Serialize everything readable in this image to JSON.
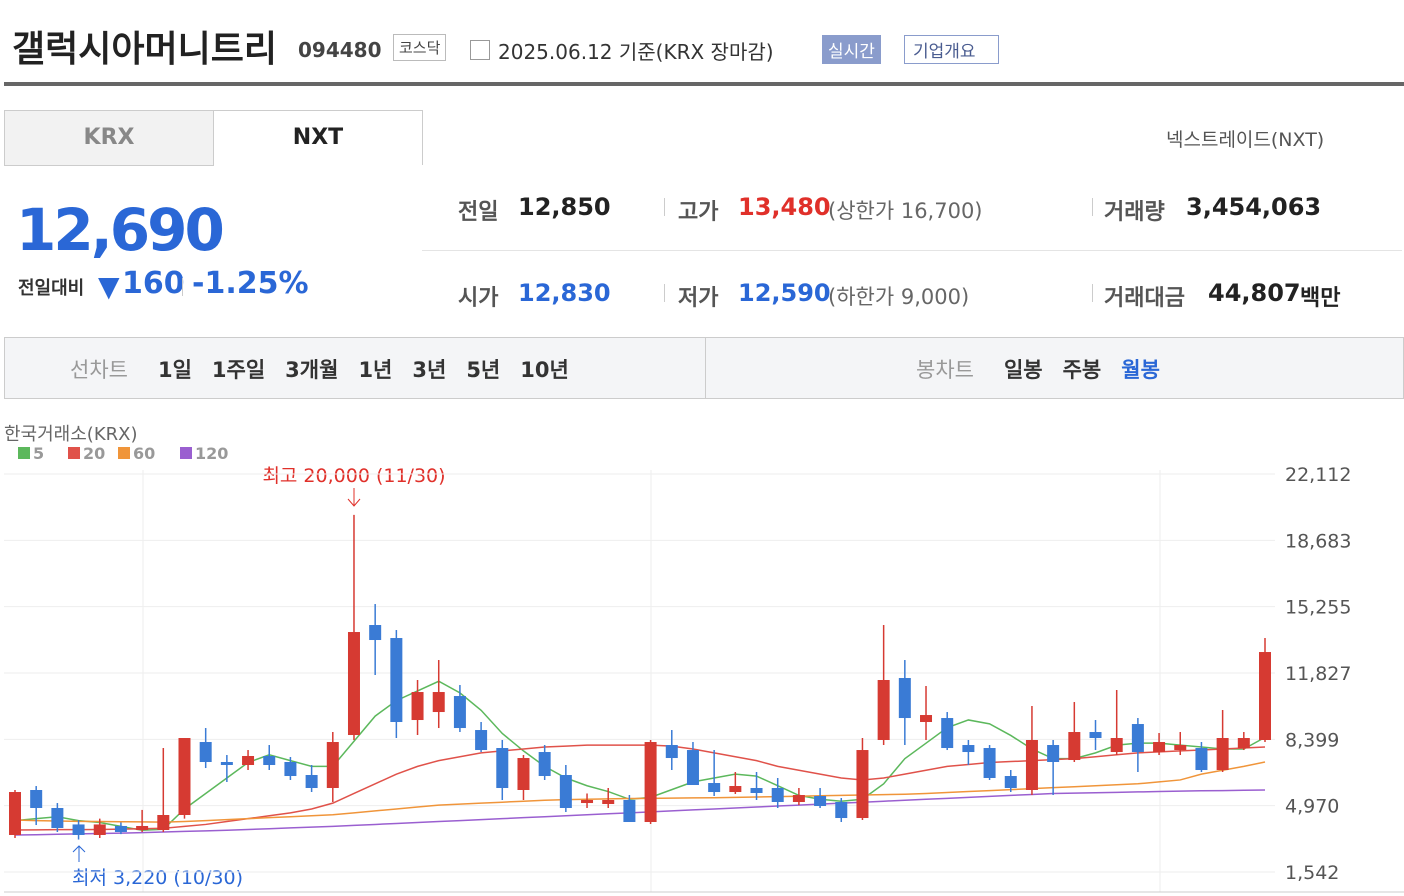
{
  "header": {
    "title": "갤럭시아머니트리",
    "code": "094480",
    "market": "코스닥",
    "date": "2025.06.12 기준(KRX 장마감)",
    "realtime": "실시간",
    "company": "기업개요"
  },
  "tabs": [
    "KRX",
    "NXT"
  ],
  "nxt_link": "넥스트레이드(NXT)",
  "price": {
    "current": "12,690",
    "change_label": "전일대비",
    "change": "160",
    "rate": "-1.25%"
  },
  "info": {
    "prev_label": "전일",
    "prev": "12,850",
    "high_label": "고가",
    "high": "13,480",
    "upper": "(상한가 16,700)",
    "volume_label": "거래량",
    "volume": "3,454,063",
    "open_label": "시가",
    "open": "12,830",
    "low_label": "저가",
    "low": "12,590",
    "lower": "(하한가 9,000)",
    "amount_label": "거래대금",
    "amount": "44,807",
    "amount_unit": "백만"
  },
  "periods": {
    "line_label": "선차트",
    "line": [
      "1일",
      "1주일",
      "3개월",
      "1년",
      "3년",
      "5년",
      "10년"
    ],
    "candle_label": "봉차트",
    "candle": [
      "일봉",
      "주봉",
      "월봉"
    ]
  },
  "chart": {
    "type": "candlestick",
    "source": "한국거래소(KRX)",
    "annotation_high": "최고 20,000 (11/30)",
    "annotation_low": "최저 3,220 (10/30)",
    "up_color": "#d63a32",
    "down_color": "#3a7bd5",
    "ylim": [
      1542,
      22112
    ],
    "yticks": [
      {
        "value": 1542,
        "label": "1,542"
      },
      {
        "value": 4970,
        "label": "4,970"
      },
      {
        "value": 8399,
        "label": "8,399"
      },
      {
        "value": 11827,
        "label": "11,827"
      },
      {
        "value": 15255,
        "label": "15,255"
      },
      {
        "value": 18683,
        "label": "18,683"
      },
      {
        "value": 22112,
        "label": "22,112"
      }
    ],
    "open": [
      3455,
      5780,
      4850,
      4000,
      3455,
      3920,
      3710,
      3713,
      4488,
      8260,
      7227,
      7072,
      7537,
      7227,
      6555,
      5883,
      8622,
      14307,
      13635,
      9397,
      9810,
      10637,
      8880,
      7950,
      5780,
      7743,
      6555,
      5107,
      5056,
      5263,
      4126,
      8105,
      7846,
      6141,
      5676,
      5883,
      5883,
      5160,
      5470,
      5160,
      4332,
      8364,
      11568,
      9294,
      9500,
      8105,
      7950,
      6503,
      5780,
      8105,
      7330,
      8777,
      7743,
      9190,
      7743,
      7846,
      7950,
      6813,
      7950,
      8364
    ],
    "high": [
      5780,
      5985,
      5107,
      4229,
      4300,
      4100,
      4750,
      7950,
      8467,
      8983,
      7588,
      7846,
      8105,
      7485,
      7072,
      8777,
      20000,
      15392,
      14048,
      11465,
      12498,
      11206,
      9294,
      8364,
      7588,
      8105,
      7072,
      5600,
      5883,
      5521,
      8364,
      8880,
      8260,
      7846,
      6710,
      6710,
      6400,
      5883,
      5883,
      5366,
      8467,
      14307,
      12498,
      11155,
      9810,
      8364,
      8105,
      6813,
      10121,
      8364,
      10327,
      9397,
      10948,
      9500,
      8725,
      8777,
      8260,
      9914,
      8777,
      13635
    ],
    "low": [
      3300,
      3970,
      3610,
      3220,
      3300,
      3500,
      3610,
      3610,
      4300,
      6916,
      6193,
      6813,
      6813,
      6297,
      5676,
      5160,
      8364,
      11723,
      8467,
      8622,
      8983,
      8777,
      7743,
      5263,
      5263,
      6297,
      4643,
      4850,
      4850,
      4126,
      4023,
      6813,
      6038,
      5470,
      5573,
      5263,
      4850,
      5000,
      4850,
      4126,
      4229,
      8105,
      8105,
      8364,
      7846,
      7072,
      6297,
      5676,
      5521,
      5521,
      7227,
      7846,
      7588,
      6710,
      7588,
      7588,
      6710,
      6710,
      7846,
      8260
    ],
    "close": [
      5676,
      4850,
      3816,
      3455,
      4000,
      3610,
      3920,
      4488,
      8467,
      7227,
      7072,
      7537,
      7072,
      6503,
      5883,
      8260,
      13945,
      13532,
      9294,
      10844,
      10844,
      8983,
      7846,
      5883,
      7433,
      6503,
      4850,
      5263,
      5263,
      4126,
      8260,
      7433,
      6038,
      5676,
      5986,
      5625,
      5160,
      5521,
      4953,
      4332,
      7846,
      11465,
      9500,
      9655,
      7950,
      7743,
      6400,
      5883,
      8364,
      7227,
      8777,
      8467,
      8467,
      7743,
      8260,
      8105,
      6813,
      8467,
      8467,
      12911
    ],
    "series": [
      {
        "name": "5",
        "color": "#5cb85c",
        "values": [
          4200,
          4300,
          4400,
          4200,
          4100,
          3900,
          3700,
          3750,
          4800,
          5600,
          6400,
          7200,
          7600,
          7300,
          7000,
          7000,
          8300,
          9600,
          10400,
          10900,
          11400,
          10800,
          9900,
          8700,
          7800,
          7000,
          6400,
          6000,
          5700,
          5300,
          5400,
          5800,
          6200,
          6400,
          6600,
          6500,
          6000,
          5500,
          5300,
          5200,
          5300,
          6100,
          7400,
          8200,
          9000,
          9400,
          9200,
          8600,
          7900,
          7400,
          7400,
          7700,
          8100,
          8200,
          8200,
          8100,
          8000,
          7900,
          7900,
          8500
        ]
      },
      {
        "name": "20",
        "color": "#e0524a",
        "values": [
          3713,
          3720,
          3730,
          3730,
          3740,
          3760,
          3780,
          3800,
          3900,
          4000,
          4150,
          4300,
          4450,
          4600,
          4800,
          5100,
          5600,
          6100,
          6600,
          7000,
          7300,
          7500,
          7700,
          7800,
          7900,
          8000,
          8050,
          8100,
          8100,
          8100,
          8100,
          8050,
          7900,
          7700,
          7500,
          7300,
          7000,
          6800,
          6600,
          6400,
          6300,
          6400,
          6600,
          6800,
          7000,
          7100,
          7200,
          7250,
          7300,
          7350,
          7400,
          7500,
          7600,
          7700,
          7750,
          7800,
          7850,
          7900,
          7950,
          8000
        ]
      },
      {
        "name": "60",
        "color": "#f0953a",
        "values": [
          4229,
          4200,
          4180,
          4160,
          4150,
          4140,
          4130,
          4120,
          4150,
          4200,
          4250,
          4300,
          4350,
          4400,
          4450,
          4500,
          4600,
          4700,
          4800,
          4900,
          5000,
          5050,
          5100,
          5150,
          5200,
          5250,
          5280,
          5300,
          5320,
          5340,
          5350,
          5360,
          5370,
          5380,
          5400,
          5420,
          5440,
          5460,
          5480,
          5500,
          5520,
          5540,
          5560,
          5600,
          5650,
          5700,
          5750,
          5800,
          5850,
          5900,
          5950,
          6000,
          6050,
          6100,
          6200,
          6300,
          6600,
          6800,
          7000,
          7227
        ]
      },
      {
        "name": "120",
        "color": "#9a5fd0",
        "values": [
          3455,
          3470,
          3490,
          3510,
          3530,
          3550,
          3580,
          3610,
          3640,
          3670,
          3700,
          3740,
          3780,
          3820,
          3860,
          3900,
          3950,
          4000,
          4050,
          4100,
          4150,
          4200,
          4250,
          4300,
          4350,
          4400,
          4450,
          4500,
          4550,
          4600,
          4650,
          4700,
          4750,
          4800,
          4850,
          4900,
          4950,
          5000,
          5050,
          5100,
          5150,
          5200,
          5250,
          5300,
          5350,
          5400,
          5450,
          5500,
          5550,
          5600,
          5620,
          5640,
          5660,
          5680,
          5700,
          5720,
          5740,
          5750,
          5770,
          5780
        ]
      }
    ]
  }
}
